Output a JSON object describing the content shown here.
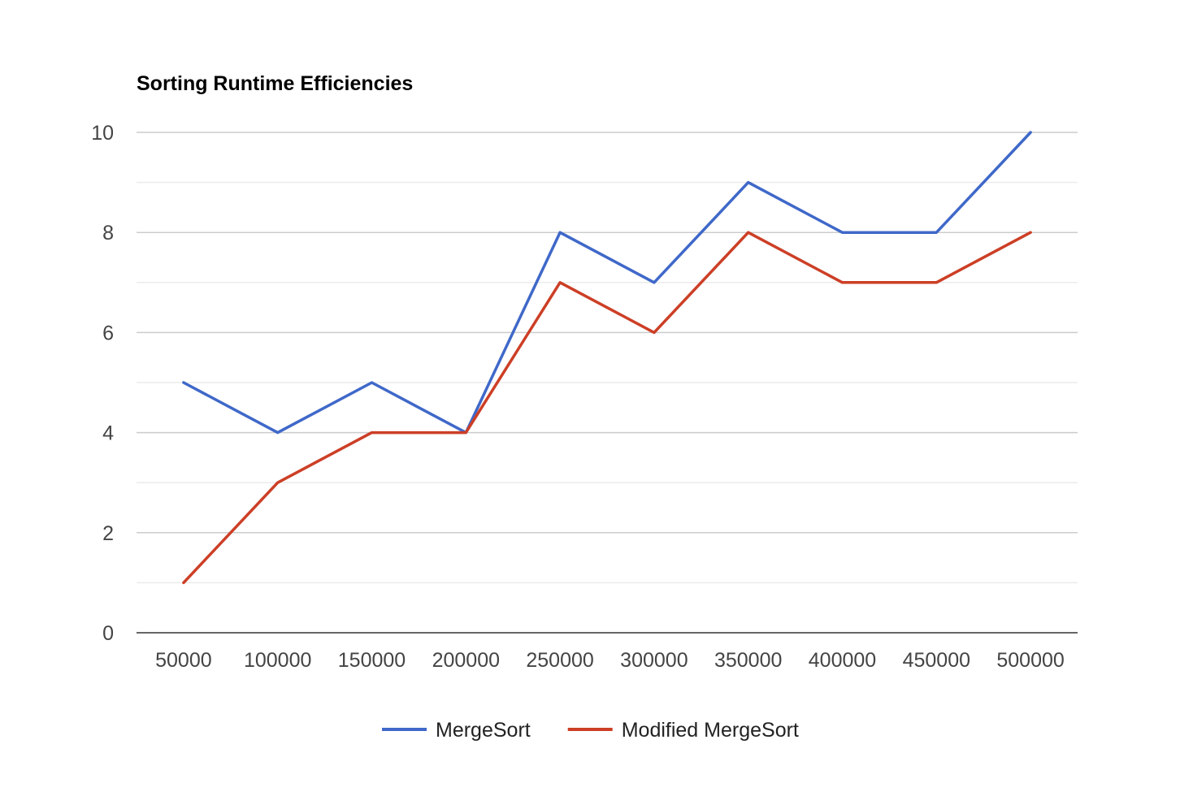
{
  "chart_data": {
    "type": "line",
    "title": "Sorting Runtime Efficiencies",
    "xlabel": "",
    "ylabel": "",
    "categories": [
      "50000",
      "100000",
      "150000",
      "200000",
      "250000",
      "300000",
      "350000",
      "400000",
      "450000",
      "500000"
    ],
    "ylim": [
      0,
      10
    ],
    "y_ticks": [
      0,
      2,
      4,
      6,
      8,
      10
    ],
    "y_minor_step": 1,
    "grid": true,
    "legend_position": "bottom",
    "series": [
      {
        "name": "MergeSort",
        "color": "#3f68c9",
        "values": [
          5,
          4,
          5,
          4,
          8,
          7,
          9,
          8,
          8,
          10
        ]
      },
      {
        "name": "Modified MergeSort",
        "color": "#cc3f26",
        "values": [
          1,
          3,
          4,
          4,
          7,
          6,
          8,
          7,
          7,
          8
        ]
      }
    ]
  }
}
